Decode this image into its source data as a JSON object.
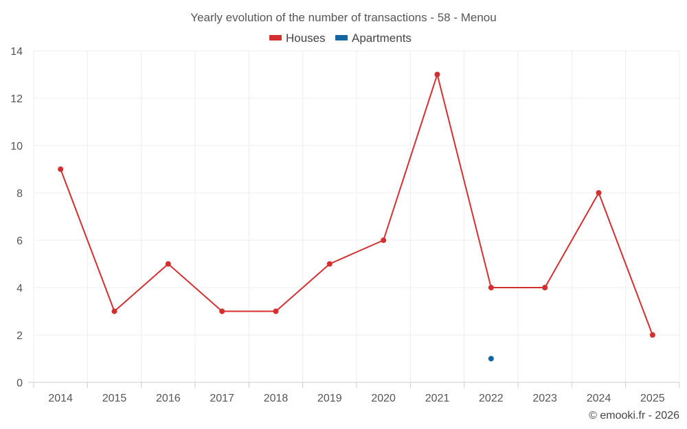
{
  "chart_data": {
    "type": "line",
    "title": "Yearly evolution of the number of transactions - 58 - Menou",
    "categories": [
      "2014",
      "2015",
      "2016",
      "2017",
      "2018",
      "2019",
      "2020",
      "2021",
      "2022",
      "2023",
      "2024",
      "2025"
    ],
    "series": [
      {
        "name": "Houses",
        "color": "#d32f2f",
        "values": [
          9,
          3,
          5,
          3,
          3,
          5,
          6,
          13,
          4,
          4,
          8,
          2
        ]
      },
      {
        "name": "Apartments",
        "color": "#1565a0",
        "values": [
          null,
          null,
          null,
          null,
          null,
          null,
          null,
          null,
          1,
          null,
          null,
          null
        ]
      }
    ],
    "xlabel": "",
    "ylabel": "",
    "ylim": [
      0,
      14
    ],
    "yticks": [
      "0",
      "2",
      "4",
      "6",
      "8",
      "10",
      "12",
      "14"
    ],
    "grid": true,
    "legend": "top-center"
  },
  "credit": "© emooki.fr - 2026"
}
